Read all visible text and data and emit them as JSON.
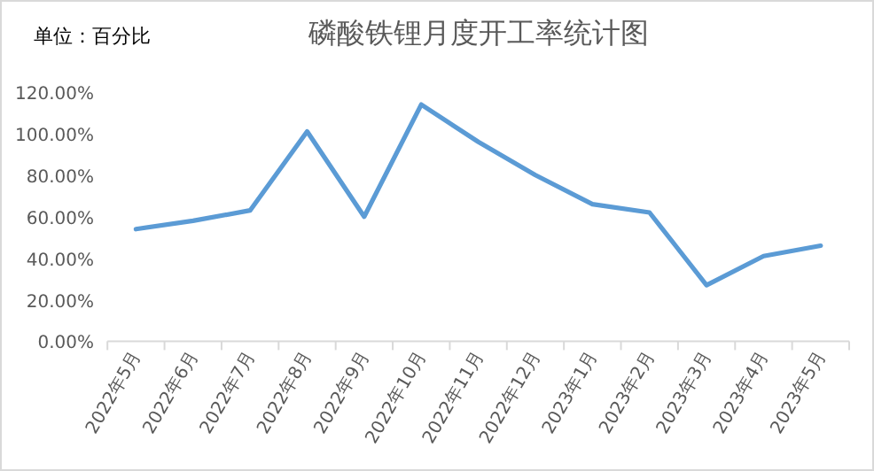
{
  "chart_data": {
    "type": "line",
    "title": "磷酸铁锂月度开工率统计图",
    "annotations": [
      "单位：百分比"
    ],
    "categories": [
      "2022年5月",
      "2022年6月",
      "2022年7月",
      "2022年8月",
      "2022年9月",
      "2022年10月",
      "2022年11月",
      "2022年12月",
      "2023年1月",
      "2023年2月",
      "2023年3月",
      "2023年4月",
      "2023年5月"
    ],
    "values": [
      54,
      58,
      63,
      101,
      60,
      114,
      96,
      80,
      66,
      62,
      27,
      41,
      46
    ],
    "color": "#5b9bd5",
    "ylim": [
      0,
      120
    ],
    "yticks": [
      {
        "value": 0,
        "label": "0.00%"
      },
      {
        "value": 20,
        "label": "20.00%"
      },
      {
        "value": 40,
        "label": "40.00%"
      },
      {
        "value": 60,
        "label": "60.00%"
      },
      {
        "value": 80,
        "label": "80.00%"
      },
      {
        "value": 100,
        "label": "100.00%"
      },
      {
        "value": 120,
        "label": "120.00%"
      }
    ],
    "grid": false,
    "legend": false,
    "marker": "none",
    "line_style": "solid"
  }
}
